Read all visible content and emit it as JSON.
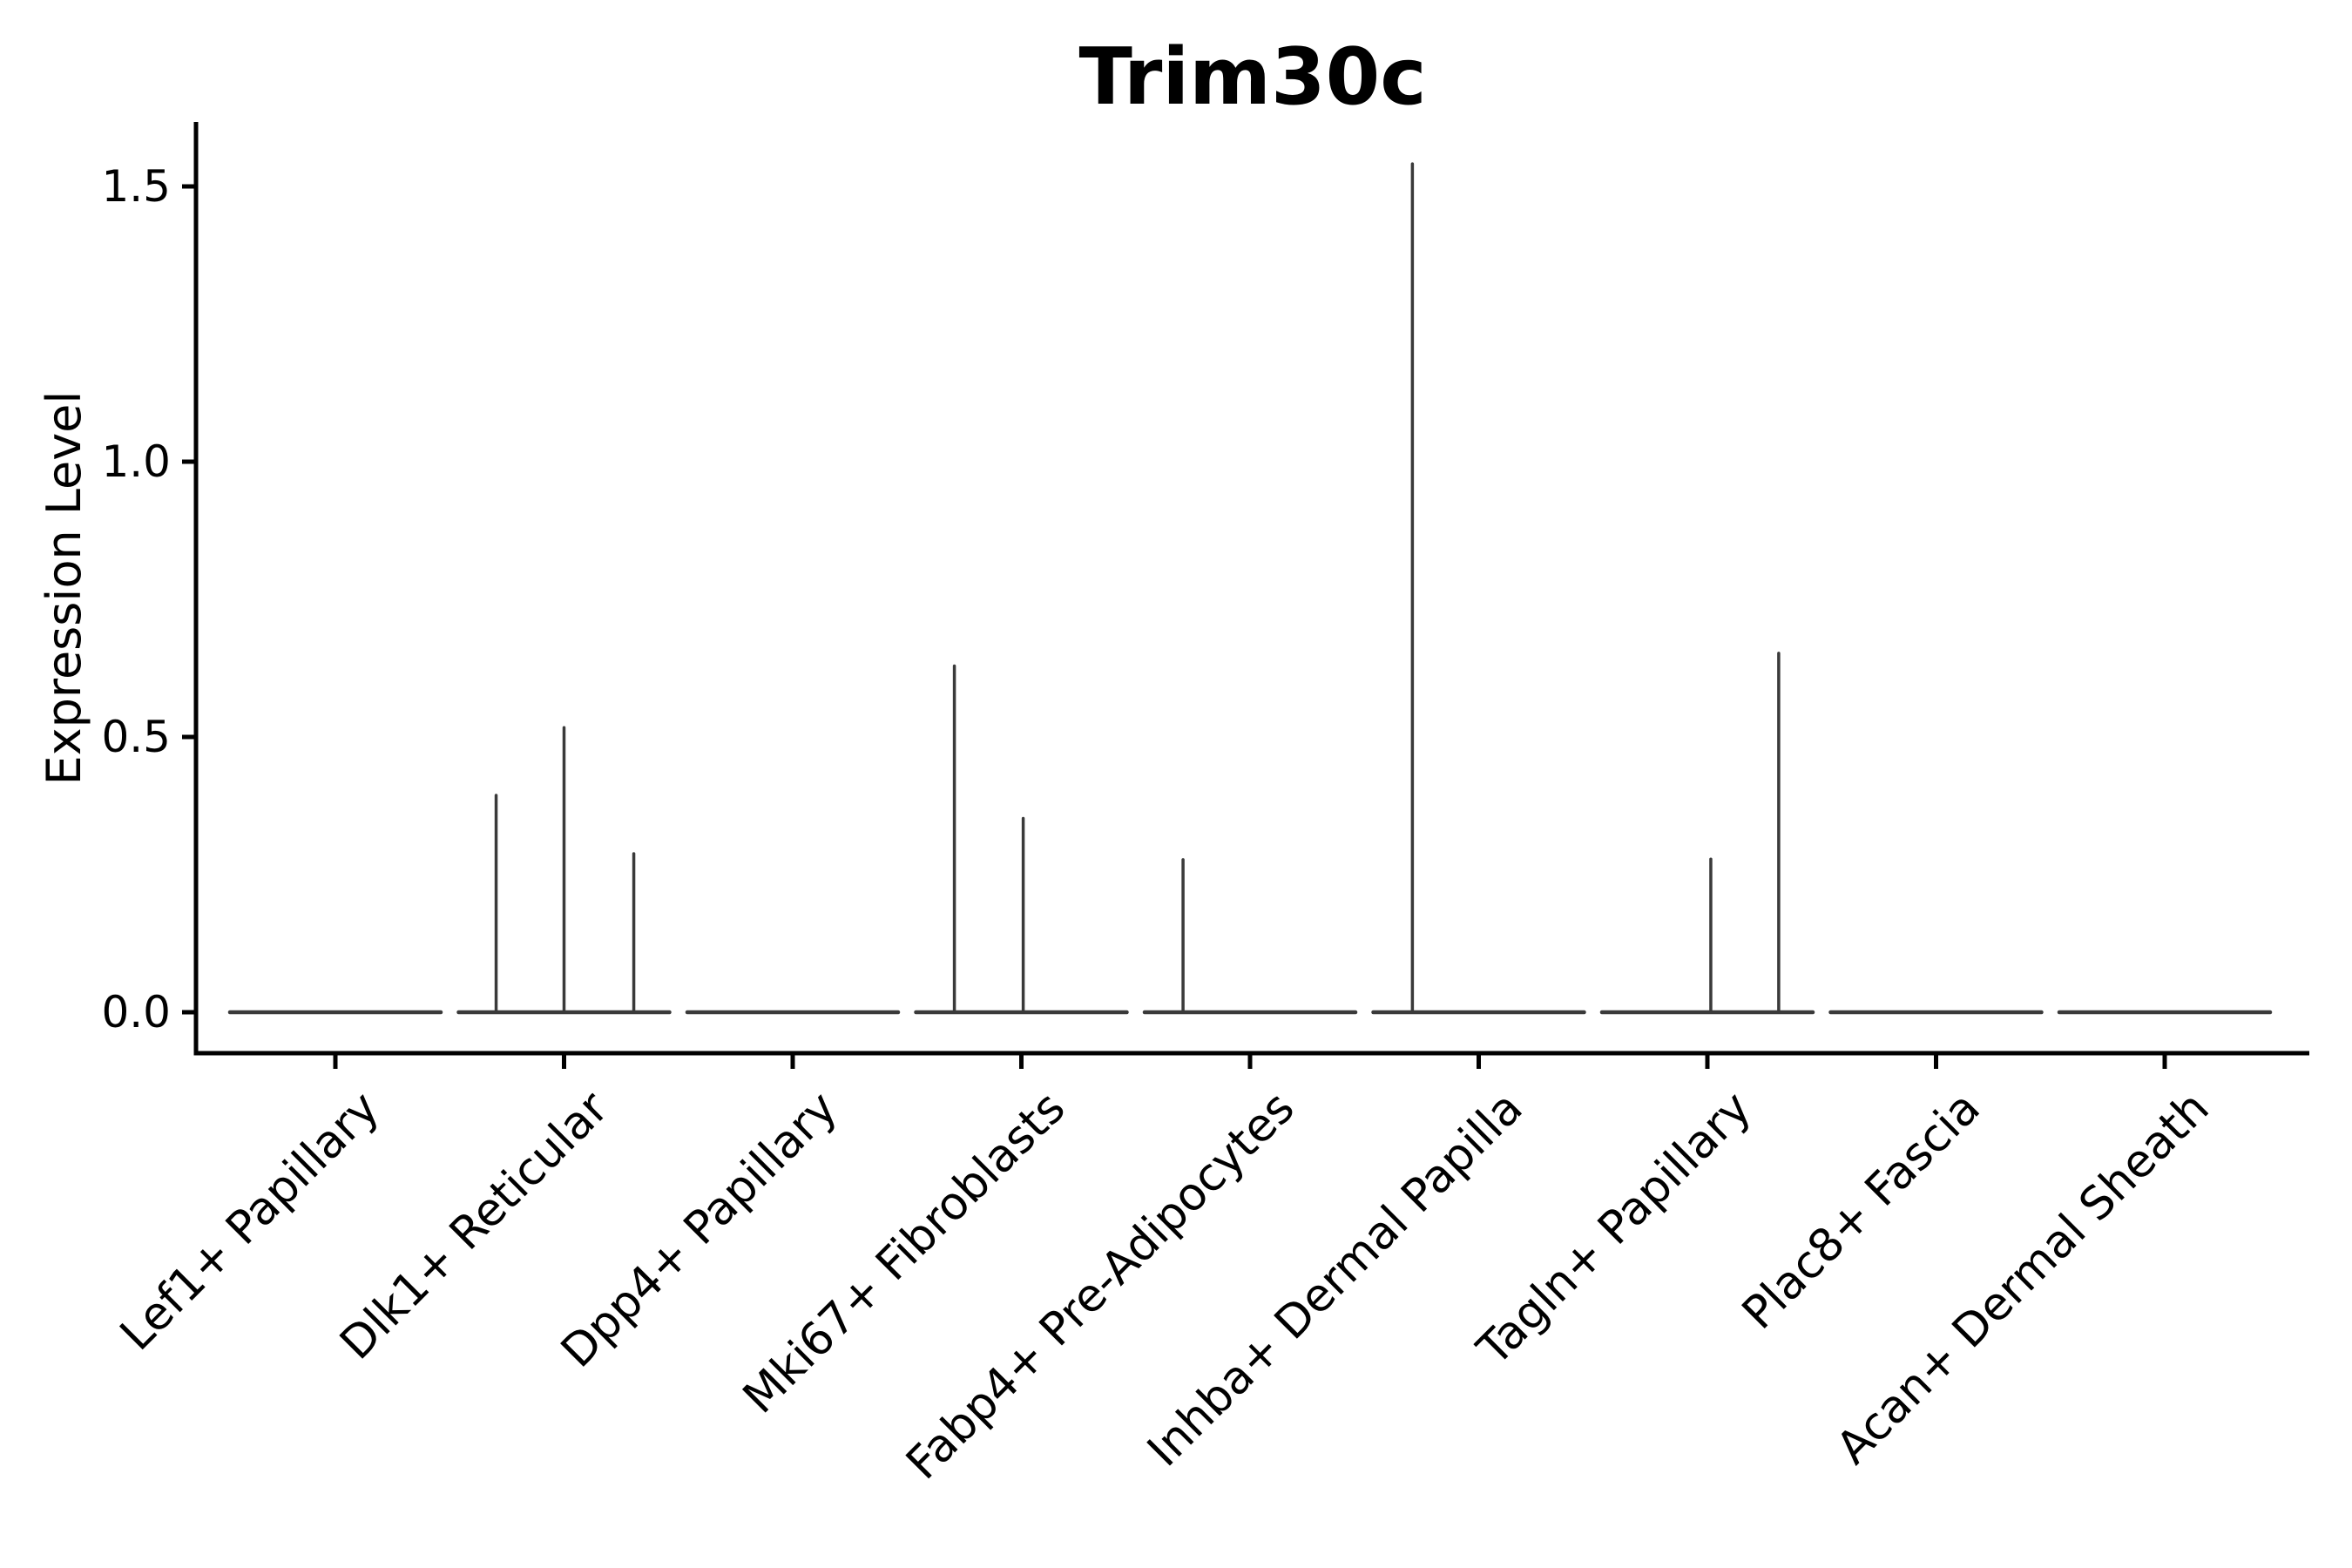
{
  "figure": {
    "background": "#ffffff",
    "text_color": "#000000"
  },
  "chart_data": {
    "type": "violin",
    "title": "Trim30c",
    "xlabel": "",
    "ylabel": "Expression Level",
    "ytick_labels": [
      "0.0",
      "0.5",
      "1.0",
      "1.5"
    ],
    "yticks": [
      0.0,
      0.5,
      1.0,
      1.5
    ],
    "ylim": [
      -0.074,
      1.617
    ],
    "grid": false,
    "legend": "none",
    "violin_color": "#3a3a3a",
    "axis_color": "#000000",
    "baseline_halfwidth_frac": 0.461,
    "categories": [
      "Lef1+ Papillary",
      "Dlk1+ Reticular",
      "Dpp4+ Papillary",
      "Mki67+ Fibroblasts",
      "Fabp4+ Pre-Adipocytes",
      "Inhba+ Dermal Papilla",
      "Tagln+ Papillary",
      "Plac8+ Fascia",
      "Acan+ Dermal Sheath"
    ],
    "series": [
      {
        "name": "Lef1+ Papillary",
        "baseline": 0.0,
        "spikes": []
      },
      {
        "name": "Dlk1+ Reticular",
        "baseline": 0.0,
        "spikes": [
          {
            "offset": -0.297,
            "value": 0.394
          },
          {
            "offset": 0.0,
            "value": 0.517
          },
          {
            "offset": 0.305,
            "value": 0.288
          }
        ]
      },
      {
        "name": "Dpp4+ Papillary",
        "baseline": 0.0,
        "spikes": []
      },
      {
        "name": "Mki67+ Fibroblasts",
        "baseline": 0.0,
        "spikes": [
          {
            "offset": -0.293,
            "value": 0.629
          },
          {
            "offset": 0.008,
            "value": 0.352
          }
        ]
      },
      {
        "name": "Fabp4+ Pre-Adipocytes",
        "baseline": 0.0,
        "spikes": [
          {
            "offset": -0.293,
            "value": 0.277
          }
        ]
      },
      {
        "name": "Inhba+ Dermal Papilla",
        "baseline": 0.0,
        "spikes": [
          {
            "offset": -0.29,
            "value": 1.541
          }
        ]
      },
      {
        "name": "Tagln+ Papillary",
        "baseline": 0.0,
        "spikes": [
          {
            "offset": 0.015,
            "value": 0.278
          },
          {
            "offset": 0.312,
            "value": 0.652
          }
        ]
      },
      {
        "name": "Plac8+ Fascia",
        "baseline": 0.0,
        "spikes": []
      },
      {
        "name": "Acan+ Dermal Sheath",
        "baseline": 0.0,
        "spikes": []
      }
    ]
  }
}
